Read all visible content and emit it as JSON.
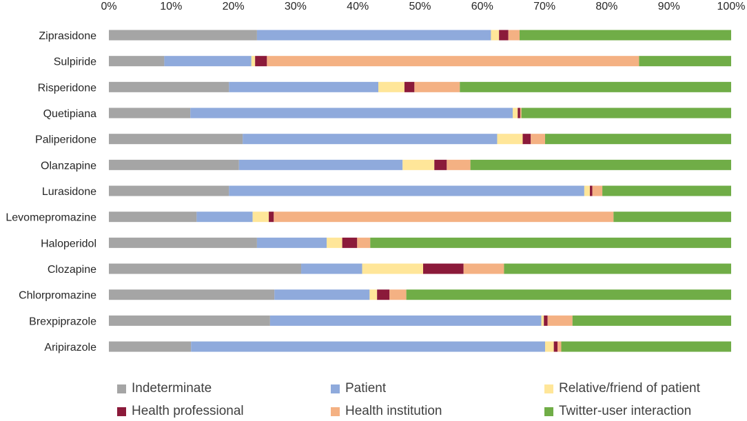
{
  "chart_data": {
    "type": "bar",
    "orientation": "horizontal",
    "stacked": "percent",
    "title": "",
    "xlabel": "",
    "ylabel": "",
    "xlim": [
      0,
      100
    ],
    "x_ticks": [
      "0%",
      "10%",
      "20%",
      "30%",
      "40%",
      "50%",
      "60%",
      "70%",
      "80%",
      "90%",
      "100%"
    ],
    "grid": false,
    "legend_position": "bottom",
    "categories": [
      "Ziprasidone",
      "Sulpiride",
      "Risperidone",
      "Quetipiana",
      "Paliperidone",
      "Olanzapine",
      "Lurasidone",
      "Levomepromazine",
      "Haloperidol",
      "Clozapine",
      "Chlorpromazine",
      "Brexpiprazole",
      "Aripirazole"
    ],
    "series": [
      {
        "name": "Indeterminate",
        "color": "#a5a5a5",
        "values": [
          23.8,
          8.9,
          19.3,
          13.1,
          21.5,
          20.9,
          19.3,
          14.1,
          23.8,
          30.9,
          26.6,
          25.9,
          13.2
        ]
      },
      {
        "name": "Patient",
        "color": "#8faadc",
        "values": [
          37.6,
          14.0,
          24.0,
          51.8,
          40.9,
          26.3,
          57.1,
          9.0,
          11.2,
          9.8,
          15.3,
          43.6,
          56.9
        ]
      },
      {
        "name": "Relative/friend of patient",
        "color": "#ffe699",
        "values": [
          1.3,
          0.6,
          4.2,
          0.8,
          4.1,
          5.1,
          0.9,
          2.6,
          2.5,
          9.8,
          1.2,
          0.4,
          1.4
        ]
      },
      {
        "name": "Health professional",
        "color": "#8b1a3a",
        "values": [
          1.5,
          1.9,
          1.6,
          0.4,
          1.3,
          2.0,
          0.4,
          0.8,
          2.4,
          6.5,
          2.0,
          0.6,
          0.6
        ]
      },
      {
        "name": "Health institution",
        "color": "#f4b183",
        "values": [
          1.8,
          59.8,
          7.3,
          0.2,
          2.3,
          3.8,
          1.6,
          54.6,
          2.1,
          6.5,
          2.7,
          4.0,
          0.6
        ]
      },
      {
        "name": "Twitter-user interaction",
        "color": "#70ad47",
        "values": [
          34.0,
          14.8,
          43.6,
          33.7,
          29.9,
          41.9,
          20.7,
          18.9,
          58.0,
          36.5,
          52.2,
          25.5,
          27.3
        ]
      }
    ]
  }
}
